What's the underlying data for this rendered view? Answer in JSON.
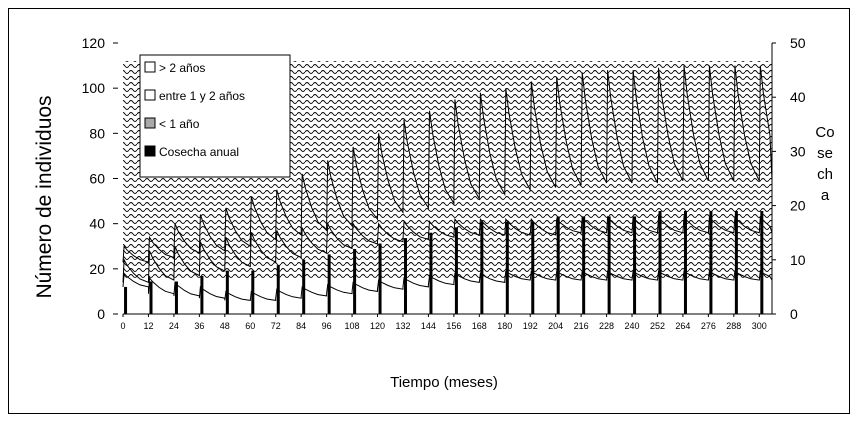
{
  "chart_data": {
    "type": "line",
    "title": "",
    "xlabel": "Tiempo (meses)",
    "ylabel": "Número de individuos",
    "y2label": "Co se ch a",
    "y2label_lines": [
      "Co",
      "se",
      "ch",
      "a"
    ],
    "xlim": [
      0,
      306
    ],
    "ylim": [
      0,
      120
    ],
    "y2lim": [
      0,
      50
    ],
    "x_ticks": [
      0,
      12,
      24,
      36,
      48,
      60,
      72,
      84,
      96,
      108,
      120,
      132,
      144,
      156,
      168,
      180,
      192,
      204,
      216,
      228,
      240,
      252,
      264,
      276,
      288,
      300
    ],
    "y_ticks": [
      0,
      20,
      40,
      60,
      80,
      100,
      120
    ],
    "y2_ticks": [
      0,
      10,
      20,
      30,
      40,
      50
    ],
    "legend_position": "top-left",
    "legend": [
      {
        "label": "> 2 años",
        "swatch": "#ffffff"
      },
      {
        "label": "entre 1 y 2 años",
        "swatch": "#ffffff"
      },
      {
        "label": "< 1 año",
        "swatch": "#a9a9a9"
      },
      {
        "label": "Cosecha anual",
        "swatch": "#000000"
      }
    ],
    "harvest": {
      "name": "Cosecha anual",
      "axis": "right",
      "x": [
        0,
        12,
        24,
        36,
        48,
        60,
        72,
        84,
        96,
        108,
        120,
        132,
        144,
        156,
        168,
        180,
        192,
        204,
        216,
        228,
        240,
        252,
        264,
        276,
        288,
        300
      ],
      "values": [
        5,
        6,
        6,
        7,
        8,
        8,
        9,
        10,
        11,
        12,
        13,
        14,
        15,
        16,
        17,
        17,
        17,
        18,
        18,
        18,
        18,
        19,
        19,
        19,
        19,
        19
      ]
    },
    "annual_cycles": {
      "x_start": [
        0,
        12,
        24,
        36,
        48,
        60,
        72,
        84,
        96,
        108,
        120,
        132,
        144,
        156,
        168,
        180,
        192,
        204,
        216,
        228,
        240,
        252,
        264,
        276,
        288,
        300
      ],
      "total_peak": [
        30,
        34,
        40,
        44,
        47,
        52,
        55,
        62,
        68,
        74,
        80,
        86,
        90,
        95,
        98,
        100,
        103,
        105,
        107,
        108,
        108,
        109,
        110,
        110,
        110,
        110
      ],
      "total_base": [
        23,
        25,
        27,
        28,
        30,
        33,
        35,
        37,
        39,
        42,
        45,
        47,
        49,
        51,
        53,
        55,
        56,
        57,
        58,
        58,
        58,
        59,
        59,
        59,
        59,
        59
      ],
      "mid_peak": [
        24,
        28,
        30,
        32,
        34,
        36,
        37,
        38,
        40,
        40,
        40,
        41,
        41,
        42,
        42,
        42,
        42,
        42,
        43,
        43,
        43,
        43,
        43,
        43,
        43,
        43
      ],
      "mid_base": [
        14,
        15,
        17,
        19,
        21,
        23,
        25,
        27,
        29,
        31,
        32,
        33,
        34,
        35,
        35,
        35,
        35,
        36,
        36,
        36,
        36,
        36,
        36,
        36,
        36,
        36
      ],
      "low_peak": [
        18,
        16,
        14,
        12,
        10,
        10,
        11,
        12,
        13,
        14,
        15,
        16,
        17,
        18,
        18,
        19,
        19,
        19,
        19,
        19,
        19,
        19,
        19,
        19,
        19,
        19
      ],
      "low_base": [
        12,
        9,
        8,
        7,
        6,
        6,
        7,
        8,
        9,
        10,
        11,
        12,
        13,
        14,
        14,
        15,
        15,
        15,
        15,
        15,
        15,
        15,
        15,
        15,
        15,
        15
      ]
    }
  }
}
